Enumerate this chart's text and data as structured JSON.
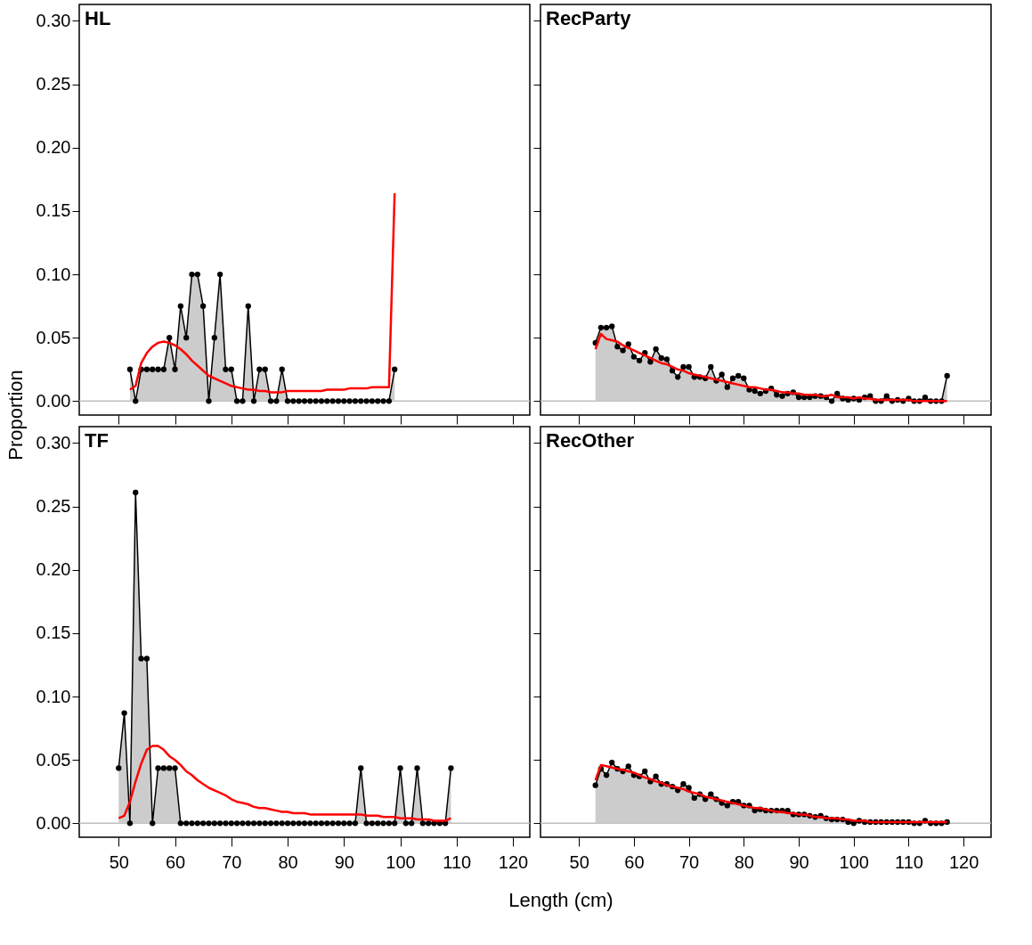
{
  "chart_data": [
    {
      "type": "area",
      "title": "HL",
      "ylabel": "Proportion",
      "tick_labels": "y",
      "grid": false,
      "x": [
        52,
        53,
        54,
        55,
        56,
        57,
        58,
        59,
        60,
        61,
        62,
        63,
        64,
        65,
        66,
        67,
        68,
        69,
        70,
        71,
        72,
        73,
        74,
        75,
        76,
        77,
        78,
        79,
        80,
        81,
        82,
        83,
        84,
        85,
        86,
        87,
        88,
        89,
        90,
        91,
        92,
        93,
        94,
        95,
        96,
        97,
        98,
        99
      ],
      "xlim": [
        43,
        123
      ],
      "xticks": [
        {
          "value": 50,
          "label": null
        },
        {
          "value": 60,
          "label": null
        },
        {
          "value": 70,
          "label": null
        },
        {
          "value": 80,
          "label": null
        },
        {
          "value": 90,
          "label": null
        },
        {
          "value": 100,
          "label": null
        },
        {
          "value": 110,
          "label": null
        },
        {
          "value": 120,
          "label": null
        }
      ],
      "ylim": [
        -0.011,
        0.313
      ],
      "yticks": [
        {
          "value": 0,
          "label": "0.00"
        },
        {
          "value": 0.05,
          "label": "0.05"
        },
        {
          "value": 0.1,
          "label": "0.10"
        },
        {
          "value": 0.15,
          "label": "0.15"
        },
        {
          "value": 0.2,
          "label": "0.20"
        },
        {
          "value": 0.25,
          "label": "0.25"
        },
        {
          "value": 0.3,
          "label": "0.30"
        }
      ],
      "ref_lines": [
        {
          "axis": "y",
          "value": 0,
          "color": "#bebebe"
        }
      ],
      "series": [
        {
          "type": "area",
          "color": "#cccccc",
          "marker": "circle",
          "values": [
            0.025,
            0,
            0.025,
            0.025,
            0.025,
            0.025,
            0.025,
            0.05,
            0.025,
            0.075,
            0.05,
            0.1,
            0.1,
            0.075,
            0,
            0.05,
            0.1,
            0.025,
            0.025,
            0,
            0,
            0.075,
            0,
            0.025,
            0.025,
            0,
            0,
            0.025,
            0,
            0,
            0,
            0,
            0,
            0,
            0,
            0,
            0,
            0,
            0,
            0,
            0,
            0,
            0,
            0,
            0,
            0,
            0,
            0.025
          ]
        },
        {
          "type": "line",
          "color": "#ff0000",
          "values": [
            0.009,
            0.012,
            0.03,
            0.038,
            0.043,
            0.046,
            0.047,
            0.046,
            0.044,
            0.041,
            0.037,
            0.032,
            0.028,
            0.024,
            0.02,
            0.018,
            0.016,
            0.014,
            0.012,
            0.011,
            0.01,
            0.009,
            0.009,
            0.008,
            0.008,
            0.007,
            0.007,
            0.007,
            0.008,
            0.008,
            0.008,
            0.008,
            0.008,
            0.008,
            0.008,
            0.009,
            0.009,
            0.009,
            0.009,
            0.01,
            0.01,
            0.01,
            0.01,
            0.011,
            0.011,
            0.011,
            0.011,
            0.164
          ]
        }
      ]
    },
    {
      "type": "area",
      "title": "RecParty",
      "tick_labels": false,
      "grid": false,
      "x": [
        53,
        54,
        55,
        56,
        57,
        58,
        59,
        60,
        61,
        62,
        63,
        64,
        65,
        66,
        67,
        68,
        69,
        70,
        71,
        72,
        73,
        74,
        75,
        76,
        77,
        78,
        79,
        80,
        81,
        82,
        83,
        84,
        85,
        86,
        87,
        88,
        89,
        90,
        91,
        92,
        93,
        94,
        95,
        96,
        97,
        98,
        99,
        100,
        101,
        102,
        103,
        104,
        105,
        106,
        107,
        108,
        109,
        110,
        111,
        112,
        113,
        114,
        115,
        116,
        117
      ],
      "xlim": [
        43,
        125
      ],
      "xticks": [
        {
          "value": 50,
          "label": null
        },
        {
          "value": 60,
          "label": null
        },
        {
          "value": 70,
          "label": null
        },
        {
          "value": 80,
          "label": null
        },
        {
          "value": 90,
          "label": null
        },
        {
          "value": 100,
          "label": null
        },
        {
          "value": 110,
          "label": null
        },
        {
          "value": 120,
          "label": null
        }
      ],
      "ylim": [
        -0.011,
        0.313
      ],
      "yticks": [
        {
          "value": 0,
          "label": null
        },
        {
          "value": 0.05,
          "label": null
        },
        {
          "value": 0.1,
          "label": null
        },
        {
          "value": 0.15,
          "label": null
        },
        {
          "value": 0.2,
          "label": null
        },
        {
          "value": 0.25,
          "label": null
        },
        {
          "value": 0.3,
          "label": null
        }
      ],
      "ref_lines": [
        {
          "axis": "y",
          "value": 0,
          "color": "#bebebe"
        }
      ],
      "series": [
        {
          "type": "area",
          "color": "#cccccc",
          "marker": "circle",
          "values": [
            0.046,
            0.058,
            0.058,
            0.059,
            0.043,
            0.04,
            0.045,
            0.035,
            0.032,
            0.038,
            0.031,
            0.041,
            0.034,
            0.033,
            0.024,
            0.019,
            0.027,
            0.027,
            0.019,
            0.019,
            0.018,
            0.027,
            0.016,
            0.021,
            0.011,
            0.018,
            0.02,
            0.018,
            0.009,
            0.008,
            0.006,
            0.008,
            0.01,
            0.005,
            0.004,
            0.006,
            0.007,
            0.003,
            0.003,
            0.003,
            0.004,
            0.004,
            0.003,
            0,
            0.006,
            0.002,
            0.001,
            0.002,
            0.001,
            0.003,
            0.004,
            0,
            0,
            0.004,
            0,
            0.001,
            0,
            0.002,
            0,
            0,
            0.003,
            0,
            0,
            0,
            0.02
          ]
        },
        {
          "type": "line",
          "color": "#ff0000",
          "values": [
            0.041,
            0.053,
            0.049,
            0.048,
            0.047,
            0.044,
            0.042,
            0.04,
            0.038,
            0.036,
            0.034,
            0.032,
            0.03,
            0.029,
            0.027,
            0.025,
            0.024,
            0.022,
            0.021,
            0.02,
            0.019,
            0.018,
            0.017,
            0.016,
            0.015,
            0.014,
            0.013,
            0.012,
            0.011,
            0.011,
            0.01,
            0.009,
            0.009,
            0.008,
            0.007,
            0.007,
            0.006,
            0.006,
            0.005,
            0.005,
            0.005,
            0.004,
            0.004,
            0.005,
            0.003,
            0.003,
            0.003,
            0.002,
            0.003,
            0.002,
            0.002,
            0.001,
            0.001,
            0.001,
            0.001,
            0.001,
            0.001,
            0.001,
            0,
            0,
            0,
            0,
            0,
            0,
            0
          ]
        }
      ]
    },
    {
      "type": "area",
      "title": "TF",
      "xlabel": "Length (cm)",
      "grid": false,
      "x": [
        50,
        51,
        52,
        53,
        54,
        55,
        56,
        57,
        58,
        59,
        60,
        61,
        62,
        63,
        64,
        65,
        66,
        67,
        68,
        69,
        70,
        71,
        72,
        73,
        74,
        75,
        76,
        77,
        78,
        79,
        80,
        81,
        82,
        83,
        84,
        85,
        86,
        87,
        88,
        89,
        90,
        91,
        92,
        93,
        94,
        95,
        96,
        97,
        98,
        99,
        100,
        101,
        102,
        103,
        104,
        105,
        106,
        107,
        108,
        109
      ],
      "xlim": [
        43,
        123
      ],
      "xticks": [
        50,
        60,
        70,
        80,
        90,
        100,
        110,
        120
      ],
      "ylim": [
        -0.011,
        0.313
      ],
      "yticks": [
        {
          "value": 0,
          "label": "0.00"
        },
        {
          "value": 0.05,
          "label": "0.05"
        },
        {
          "value": 0.1,
          "label": "0.10"
        },
        {
          "value": 0.15,
          "label": "0.15"
        },
        {
          "value": 0.2,
          "label": "0.20"
        },
        {
          "value": 0.25,
          "label": "0.25"
        },
        {
          "value": 0.3,
          "label": "0.30"
        }
      ],
      "ref_lines": [
        {
          "axis": "y",
          "value": 0,
          "color": "#bebebe"
        }
      ],
      "series": [
        {
          "type": "area",
          "color": "#cccccc",
          "marker": "circle",
          "values": [
            0.0435,
            0.087,
            0,
            0.261,
            0.13,
            0.13,
            0,
            0.0435,
            0.0435,
            0.0435,
            0.0435,
            0,
            0,
            0,
            0,
            0,
            0,
            0,
            0,
            0,
            0,
            0,
            0,
            0,
            0,
            0,
            0,
            0,
            0,
            0,
            0,
            0,
            0,
            0,
            0,
            0,
            0,
            0,
            0,
            0,
            0,
            0,
            0,
            0.0435,
            0,
            0,
            0,
            0,
            0,
            0,
            0.0435,
            0,
            0,
            0.0435,
            0,
            0,
            0,
            0,
            0,
            0.0435
          ]
        },
        {
          "type": "line",
          "color": "#ff0000",
          "values": [
            0.004,
            0.006,
            0.017,
            0.033,
            0.047,
            0.058,
            0.061,
            0.061,
            0.058,
            0.053,
            0.05,
            0.046,
            0.041,
            0.038,
            0.034,
            0.031,
            0.028,
            0.026,
            0.024,
            0.022,
            0.019,
            0.017,
            0.016,
            0.015,
            0.013,
            0.012,
            0.012,
            0.011,
            0.01,
            0.009,
            0.009,
            0.008,
            0.008,
            0.008,
            0.007,
            0.007,
            0.007,
            0.007,
            0.007,
            0.007,
            0.007,
            0.007,
            0.007,
            0.007,
            0.006,
            0.006,
            0.006,
            0.005,
            0.005,
            0.005,
            0.004,
            0.004,
            0.004,
            0.003,
            0.003,
            0.003,
            0.002,
            0.002,
            0.002,
            0.004
          ]
        }
      ]
    },
    {
      "type": "area",
      "title": "RecOther",
      "tick_labels": "x",
      "grid": false,
      "x": [
        53,
        54,
        55,
        56,
        57,
        58,
        59,
        60,
        61,
        62,
        63,
        64,
        65,
        66,
        67,
        68,
        69,
        70,
        71,
        72,
        73,
        74,
        75,
        76,
        77,
        78,
        79,
        80,
        81,
        82,
        83,
        84,
        85,
        86,
        87,
        88,
        89,
        90,
        91,
        92,
        93,
        94,
        95,
        96,
        97,
        98,
        99,
        100,
        101,
        102,
        103,
        104,
        105,
        106,
        107,
        108,
        109,
        110,
        111,
        112,
        113,
        114,
        115,
        116,
        117
      ],
      "xlim": [
        43,
        125
      ],
      "xticks": [
        50,
        60,
        70,
        80,
        90,
        100,
        110,
        120
      ],
      "ylim": [
        -0.011,
        0.313
      ],
      "yticks": [
        {
          "value": 0,
          "label": null
        },
        {
          "value": 0.05,
          "label": null
        },
        {
          "value": 0.1,
          "label": null
        },
        {
          "value": 0.15,
          "label": null
        },
        {
          "value": 0.2,
          "label": null
        },
        {
          "value": 0.25,
          "label": null
        },
        {
          "value": 0.3,
          "label": null
        }
      ],
      "ref_lines": [
        {
          "axis": "y",
          "value": 0,
          "color": "#bebebe"
        }
      ],
      "series": [
        {
          "type": "area",
          "color": "#cccccc",
          "marker": "circle",
          "values": [
            0.03,
            0.043,
            0.038,
            0.048,
            0.043,
            0.041,
            0.045,
            0.038,
            0.037,
            0.041,
            0.033,
            0.037,
            0.031,
            0.031,
            0.029,
            0.026,
            0.031,
            0.028,
            0.02,
            0.023,
            0.019,
            0.023,
            0.019,
            0.016,
            0.014,
            0.017,
            0.017,
            0.014,
            0.014,
            0.01,
            0.011,
            0.01,
            0.01,
            0.01,
            0.01,
            0.01,
            0.007,
            0.007,
            0.007,
            0.006,
            0.005,
            0.006,
            0.004,
            0.003,
            0.003,
            0.003,
            0.001,
            0,
            0.002,
            0.001,
            0.001,
            0.001,
            0.001,
            0.001,
            0.001,
            0.001,
            0.001,
            0.001,
            0,
            0,
            0.002,
            0,
            0,
            0,
            0.001
          ]
        },
        {
          "type": "line",
          "color": "#ff0000",
          "values": [
            0.034,
            0.046,
            0.045,
            0.044,
            0.043,
            0.042,
            0.041,
            0.04,
            0.038,
            0.036,
            0.035,
            0.033,
            0.032,
            0.03,
            0.029,
            0.028,
            0.027,
            0.025,
            0.024,
            0.023,
            0.021,
            0.02,
            0.019,
            0.018,
            0.017,
            0.016,
            0.015,
            0.014,
            0.013,
            0.012,
            0.012,
            0.011,
            0.01,
            0.009,
            0.009,
            0.008,
            0.008,
            0.007,
            0.007,
            0.006,
            0.005,
            0.005,
            0.004,
            0.004,
            0.004,
            0.003,
            0.003,
            0.002,
            0.002,
            0.002,
            0.001,
            0.001,
            0.001,
            0.001,
            0.001,
            0.001,
            0.001,
            0.001,
            0.001,
            0.001,
            0.001,
            0.001,
            0.001,
            0.001,
            0.001
          ]
        }
      ]
    }
  ]
}
